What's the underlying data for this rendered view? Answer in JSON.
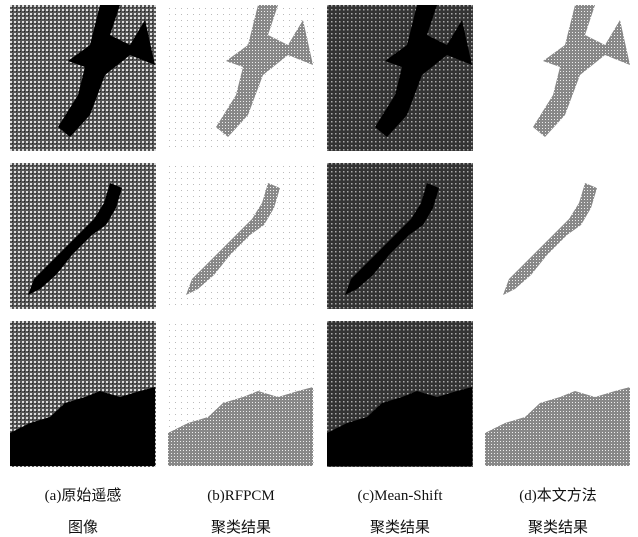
{
  "figure": {
    "captions": [
      {
        "line1": "(a)原始遥感",
        "line2": "图像"
      },
      {
        "line1": "(b)RFPCM",
        "line2": "聚类结果"
      },
      {
        "line1": "(c)Mean-Shift",
        "line2": "聚类结果"
      },
      {
        "line1": "(d)本文方法",
        "line2": "聚类结果"
      }
    ]
  }
}
